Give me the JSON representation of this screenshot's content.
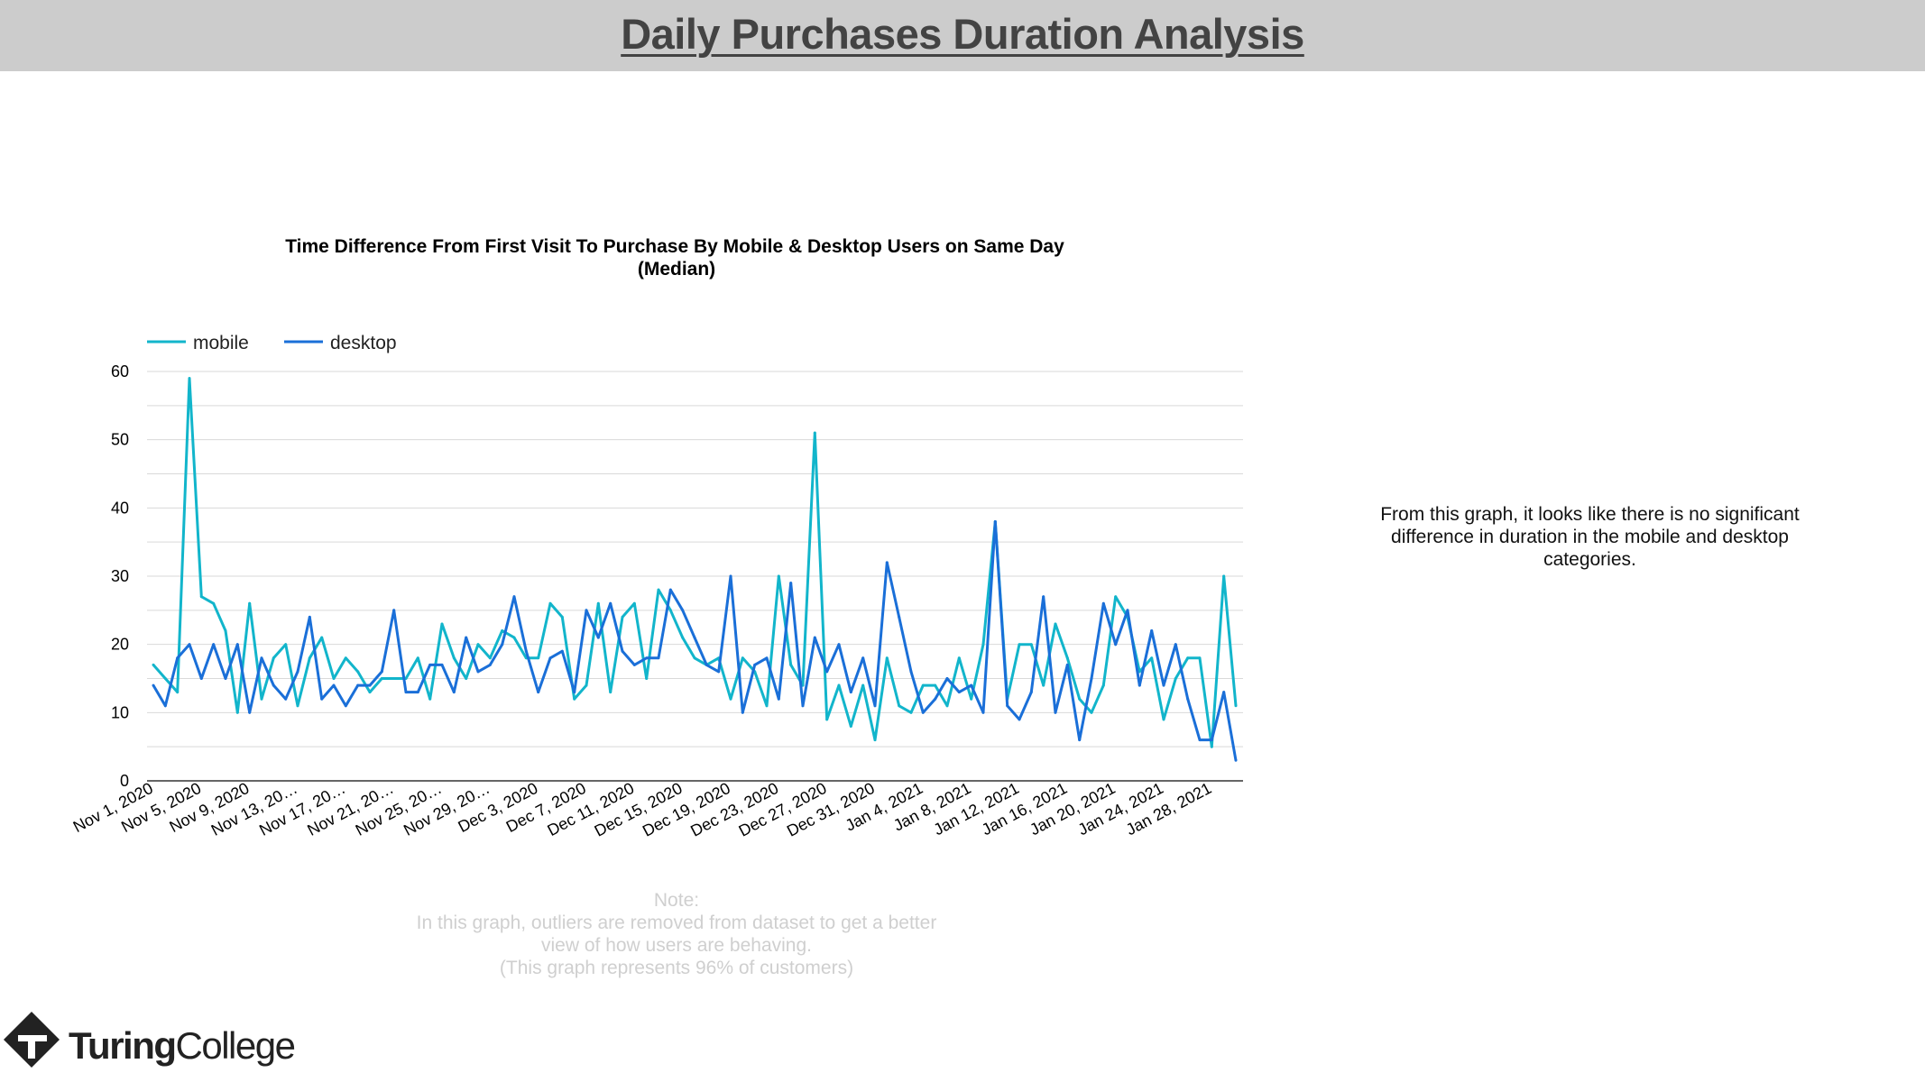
{
  "header": {
    "title": "Daily Purchases  Duration Analysis"
  },
  "colors": {
    "header_band": "#cccccc",
    "title": "#434343",
    "mobile": "#12b5cb",
    "desktop": "#1a6fd8",
    "note": "#cfcfcf"
  },
  "side_note": {
    "text": "From this graph, it looks like there is no significant difference in duration in the mobile and desktop categories."
  },
  "note": {
    "heading": "Note:",
    "line1": "In this graph, outliers are removed from dataset to get a better",
    "line2": "view of how users are behaving.",
    "line3": "(This graph represents 96% of customers)"
  },
  "logo": {
    "brand_bold": "Turing",
    "brand_light": "College",
    "icon": "turing-college-logo-icon"
  },
  "chart_data": {
    "type": "line",
    "title_lines": [
      "Time Difference From First Visit To Purchase By Mobile & Desktop Users on Same Day",
      "(Median)"
    ],
    "xlabel": "",
    "ylabel": "",
    "ylim": [
      0,
      60
    ],
    "yticks": [
      0,
      10,
      20,
      30,
      40,
      50,
      60
    ],
    "grid": true,
    "legend_position": "top-left",
    "x_labels": [
      "Nov 1, 2020",
      "Nov 5, 2020",
      "Nov 9, 2020",
      "Nov 13, 20…",
      "Nov 17, 20…",
      "Nov 21, 20…",
      "Nov 25, 20…",
      "Nov 29, 20…",
      "Dec 3, 2020",
      "Dec 7, 2020",
      "Dec 11, 2020",
      "Dec 15, 2020",
      "Dec 19, 2020",
      "Dec 23, 2020",
      "Dec 27, 2020",
      "Dec 31, 2020",
      "Jan 4, 2021",
      "Jan 8, 2021",
      "Jan 12, 2021",
      "Jan 16, 2021",
      "Jan 20, 2021",
      "Jan 24, 2021",
      "Jan 28, 2021"
    ],
    "x_label_step_days": 4,
    "series": [
      {
        "name": "mobile",
        "color": "#12b5cb",
        "values": [
          17,
          15,
          13,
          59,
          27,
          26,
          22,
          10,
          26,
          12,
          18,
          20,
          11,
          18,
          21,
          15,
          18,
          16,
          13,
          15,
          15,
          15,
          18,
          12,
          23,
          18,
          15,
          20,
          18,
          22,
          21,
          18,
          18,
          26,
          24,
          12,
          14,
          26,
          13,
          24,
          26,
          15,
          28,
          25,
          21,
          18,
          17,
          18,
          12,
          18,
          16,
          11,
          30,
          17,
          14,
          51,
          9,
          14,
          8,
          14,
          6,
          18,
          11,
          10,
          14,
          14,
          11,
          18,
          12,
          20,
          38,
          12,
          20,
          20,
          14,
          23,
          18,
          12,
          10,
          14,
          27,
          24,
          16,
          18,
          9,
          15,
          18,
          18,
          5,
          30,
          11
        ]
      },
      {
        "name": "desktop",
        "color": "#1a6fd8",
        "values": [
          14,
          11,
          18,
          20,
          15,
          20,
          15,
          20,
          10,
          18,
          14,
          12,
          16,
          24,
          12,
          14,
          11,
          14,
          14,
          16,
          25,
          13,
          13,
          17,
          17,
          13,
          21,
          16,
          17,
          20,
          27,
          19,
          13,
          18,
          19,
          13,
          25,
          21,
          26,
          19,
          17,
          18,
          18,
          28,
          25,
          21,
          17,
          16,
          30,
          10,
          17,
          18,
          12,
          29,
          11,
          21,
          16,
          20,
          13,
          18,
          11,
          32,
          24,
          16,
          10,
          12,
          15,
          13,
          14,
          10,
          38,
          11,
          9,
          13,
          27,
          10,
          17,
          6,
          15,
          26,
          20,
          25,
          14,
          22,
          14,
          20,
          12,
          6,
          6,
          13,
          3
        ]
      }
    ]
  }
}
